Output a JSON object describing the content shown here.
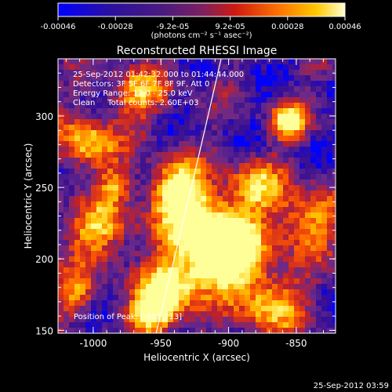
{
  "colorbar": {
    "tick_labels": [
      "-0.00046",
      "-0.00028",
      "-9.2e-05",
      "9.2e-05",
      "0.00028",
      "0.00046"
    ],
    "units_label": "(photons cm⁻² s⁻¹ asec⁻²)"
  },
  "image": {
    "title": "Reconstructed RHESSI Image",
    "info_lines": [
      "25-Sep-2012 01:42:32.000 to 01:44:44.000",
      "Detectors: 3F 5F 6F 7F 8F 9F, Att 0",
      "Energy Range: 12.0 - 25.0 keV",
      "Clean     Total counts: 2.60E+03"
    ],
    "position_text": "Position of Peak: [-901,213]",
    "xlabel": "Heliocentric X (arcsec)",
    "ylabel": "Heliocentric Y (arcsec)",
    "x_ticks": [
      "-1000",
      "-950",
      "-900",
      "-850"
    ],
    "y_ticks": [
      "150",
      "200",
      "250",
      "300"
    ]
  },
  "footer": {
    "timestamp": "25-Sep-2012 03:59"
  },
  "colors": {
    "background": "#000000",
    "foreground": "#ffffff",
    "colormap": [
      "#0000ff",
      "#3a1090",
      "#6a2a8a",
      "#c0202a",
      "#ff5a00",
      "#ffc400",
      "#ffff9a"
    ]
  }
}
